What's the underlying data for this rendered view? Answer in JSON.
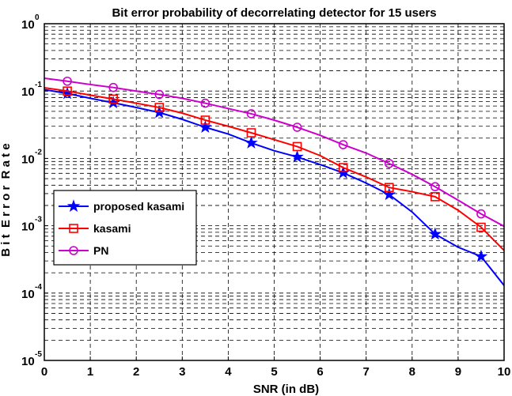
{
  "chart_data": {
    "type": "line",
    "title": "Bit error probability of decorrelating detector for 15 users",
    "xlabel": "SNR (in dB)",
    "ylabel": "B i t  E r r o r  R a t e",
    "x_tick_labels": [
      "0",
      "1",
      "2",
      "3",
      "4",
      "5",
      "6",
      "7",
      "8",
      "9",
      "10"
    ],
    "y_tick_labels": [
      {
        "base": "10",
        "exp": "0"
      },
      {
        "base": "10",
        "exp": "-1"
      },
      {
        "base": "10",
        "exp": "-2"
      },
      {
        "base": "10",
        "exp": "-3"
      },
      {
        "base": "10",
        "exp": "-4"
      },
      {
        "base": "10",
        "exp": "-5"
      }
    ],
    "xlim": [
      0,
      10
    ],
    "ylim": [
      1e-05,
      1
    ],
    "yscale": "log",
    "grid": true,
    "legend_position": "middle-left",
    "series": [
      {
        "name": "proposed kasami",
        "color": "#0000ff",
        "marker": "star",
        "x": [
          0,
          0.5,
          1,
          1.5,
          2,
          2.5,
          3,
          3.5,
          4,
          4.5,
          5,
          5.5,
          6,
          6.5,
          7,
          7.5,
          8,
          8.5,
          9,
          9.5,
          10
        ],
        "y": [
          0.105,
          0.092,
          0.078,
          0.067,
          0.057,
          0.048,
          0.038,
          0.029,
          0.023,
          0.017,
          0.013,
          0.0105,
          0.0081,
          0.0061,
          0.0043,
          0.0029,
          0.0016,
          0.00075,
          0.00048,
          0.00035,
          0.00013
        ],
        "marker_every": 2,
        "marker_start": 1
      },
      {
        "name": "kasami",
        "color": "#ff0000",
        "marker": "square",
        "x": [
          0,
          0.5,
          1,
          1.5,
          2,
          2.5,
          3,
          3.5,
          4,
          4.5,
          5,
          5.5,
          6,
          6.5,
          7,
          7.5,
          8,
          8.5,
          9,
          9.5,
          10
        ],
        "y": [
          0.112,
          0.1,
          0.087,
          0.076,
          0.066,
          0.057,
          0.047,
          0.037,
          0.03,
          0.024,
          0.019,
          0.015,
          0.011,
          0.0073,
          0.0053,
          0.0037,
          0.0032,
          0.0027,
          0.0017,
          0.00095,
          0.00043
        ],
        "marker_every": 2,
        "marker_start": 1
      },
      {
        "name": "PN",
        "color": "#cc00cc",
        "marker": "circle",
        "x": [
          0,
          0.5,
          1,
          1.5,
          2,
          2.5,
          3,
          3.5,
          4,
          4.5,
          5,
          5.5,
          6,
          6.5,
          7,
          7.5,
          8,
          8.5,
          9,
          9.5,
          10
        ],
        "y": [
          0.155,
          0.14,
          0.125,
          0.113,
          0.1,
          0.089,
          0.078,
          0.066,
          0.055,
          0.046,
          0.037,
          0.029,
          0.022,
          0.016,
          0.012,
          0.0084,
          0.0058,
          0.0038,
          0.0024,
          0.0015,
          0.00098
        ],
        "marker_every": 2,
        "marker_start": 1
      }
    ]
  }
}
